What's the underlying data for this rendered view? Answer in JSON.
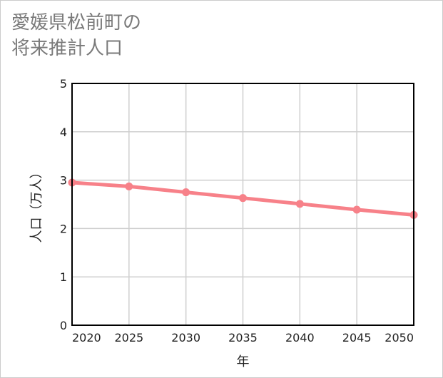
{
  "title_lines": [
    "愛媛県松前町の",
    "将来推計人口"
  ],
  "chart_data": {
    "type": "line",
    "title": "愛媛県松前町の将来推計人口",
    "xlabel": "年",
    "ylabel": "人口（万人）",
    "x": [
      2020,
      2025,
      2030,
      2035,
      2040,
      2045,
      2050
    ],
    "xlim": [
      2020,
      2050
    ],
    "ylim": [
      0,
      5
    ],
    "yticks": [
      0,
      1,
      2,
      3,
      4,
      5
    ],
    "grid": true,
    "series": [
      {
        "values": [
          2.95,
          2.87,
          2.75,
          2.63,
          2.51,
          2.39,
          2.28
        ],
        "color": "#f78189"
      }
    ]
  }
}
